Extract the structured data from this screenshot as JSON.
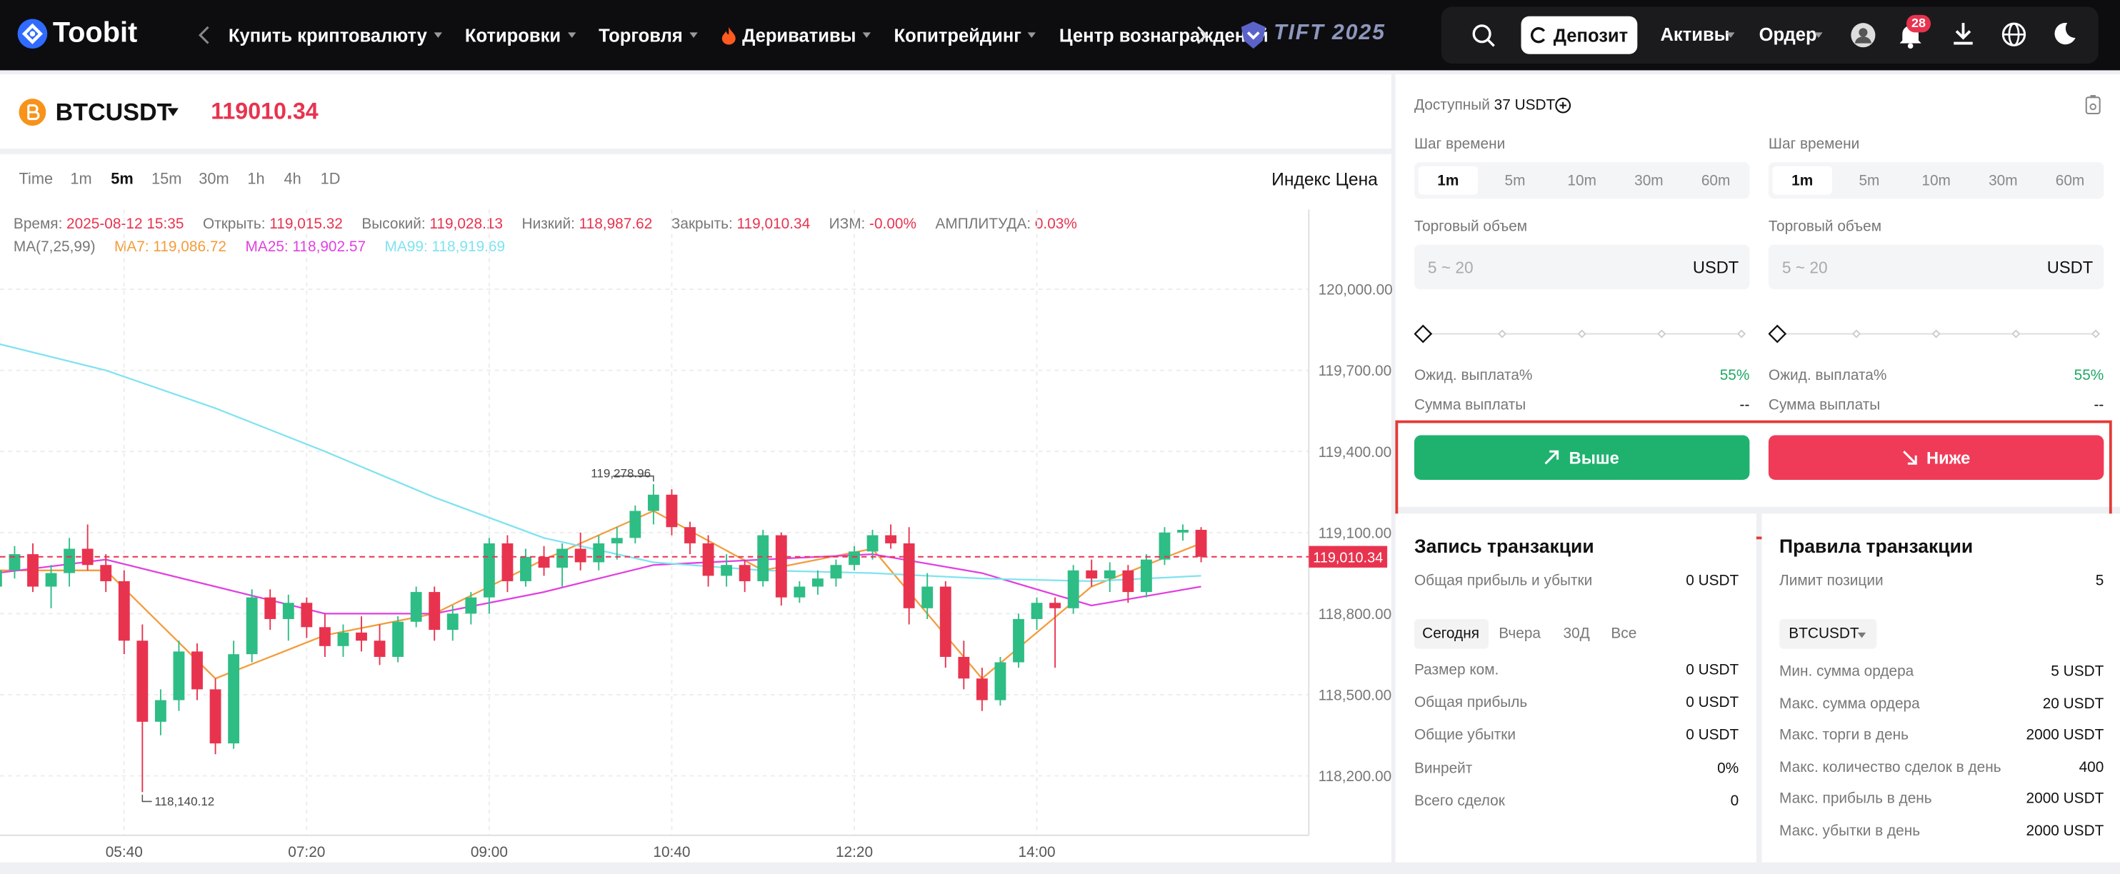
{
  "header": {
    "logo": "Toobit",
    "nav": [
      "Купить криптовалюту",
      "Котировки",
      "Торговля",
      "Деривативы",
      "Копитрейдинг",
      "Центр вознаграждений"
    ],
    "event": "TIFT 2025",
    "deposit": "Депозит",
    "assets": "Активы",
    "order": "Ордер",
    "notifications": "28"
  },
  "ticker": {
    "symbol": "BTCUSDT",
    "price": "119010.34"
  },
  "intervals": {
    "items": [
      "Time",
      "1m",
      "5m",
      "15m",
      "30m",
      "1h",
      "4h",
      "1D"
    ],
    "active": 2,
    "index_price": "Индекс Цена"
  },
  "info": {
    "items": [
      {
        "label": "Время:",
        "value": "2025-08-12 15:35"
      },
      {
        "label": "Открыть:",
        "value": "119,015.32"
      },
      {
        "label": "Высокий:",
        "value": "119,028.13"
      },
      {
        "label": "Низкий:",
        "value": "118,987.62"
      },
      {
        "label": "Закрыть:",
        "value": "119,010.34"
      },
      {
        "label": "ИЗМ:",
        "value": "-0.00%"
      },
      {
        "label": "АМПЛИТУДА:",
        "value": "0.03%"
      }
    ],
    "ma_title": "MA(7,25,99)",
    "ma": [
      {
        "label": "MA7:",
        "value": "119,086.72",
        "color": "#f39c3c"
      },
      {
        "label": "MA25:",
        "value": "118,902.57",
        "color": "#e040e0"
      },
      {
        "label": "MA99:",
        "value": "118,919.69",
        "color": "#7fe3f0"
      }
    ]
  },
  "chart_data": {
    "type": "candlestick",
    "candles": [
      [
        118900,
        118990,
        118850,
        118960
      ],
      [
        118960,
        119050,
        118930,
        119020
      ],
      [
        119020,
        119060,
        118880,
        118900
      ],
      [
        118900,
        118980,
        118820,
        118950
      ],
      [
        118950,
        119080,
        118900,
        119040
      ],
      [
        119040,
        119130,
        118960,
        118980
      ],
      [
        118980,
        119020,
        118880,
        118920
      ],
      [
        118920,
        118960,
        118650,
        118700
      ],
      [
        118700,
        118760,
        118140.12,
        118400
      ],
      [
        118400,
        118520,
        118350,
        118480
      ],
      [
        118480,
        118700,
        118440,
        118660
      ],
      [
        118660,
        118690,
        118480,
        118520
      ],
      [
        118520,
        118560,
        118280,
        118320
      ],
      [
        118320,
        118700,
        118300,
        118650
      ],
      [
        118650,
        118890,
        118620,
        118860
      ],
      [
        118860,
        118890,
        118740,
        118780
      ],
      [
        118780,
        118870,
        118700,
        118840
      ],
      [
        118840,
        118860,
        118710,
        118750
      ],
      [
        118750,
        118800,
        118640,
        118680
      ],
      [
        118680,
        118760,
        118640,
        118730
      ],
      [
        118730,
        118790,
        118660,
        118700
      ],
      [
        118700,
        118760,
        118610,
        118640
      ],
      [
        118640,
        118790,
        118620,
        118770
      ],
      [
        118770,
        118900,
        118750,
        118880
      ],
      [
        118880,
        118900,
        118700,
        118740
      ],
      [
        118740,
        118830,
        118700,
        118800
      ],
      [
        118800,
        118880,
        118760,
        118860
      ],
      [
        118860,
        119080,
        118800,
        119060
      ],
      [
        119060,
        119090,
        118880,
        118920
      ],
      [
        118920,
        119040,
        118900,
        119010
      ],
      [
        119010,
        119050,
        118940,
        118970
      ],
      [
        118970,
        119060,
        118900,
        119040
      ],
      [
        119040,
        119100,
        118960,
        118990
      ],
      [
        118990,
        119090,
        118960,
        119060
      ],
      [
        119060,
        119120,
        119000,
        119080
      ],
      [
        119080,
        119200,
        119060,
        119180
      ],
      [
        119180,
        119278.96,
        119130,
        119240
      ],
      [
        119240,
        119260,
        119090,
        119120
      ],
      [
        119120,
        119140,
        119020,
        119060
      ],
      [
        119060,
        119090,
        118900,
        118940
      ],
      [
        118940,
        119020,
        118900,
        118980
      ],
      [
        118980,
        119000,
        118880,
        118920
      ],
      [
        118920,
        119110,
        118900,
        119090
      ],
      [
        119090,
        119100,
        118830,
        118860
      ],
      [
        118860,
        118920,
        118840,
        118900
      ],
      [
        118900,
        118960,
        118870,
        118930
      ],
      [
        118930,
        119000,
        118900,
        118980
      ],
      [
        118980,
        119050,
        118960,
        119030
      ],
      [
        119030,
        119110,
        119000,
        119090
      ],
      [
        119090,
        119130,
        119040,
        119060
      ],
      [
        119060,
        119120,
        118760,
        118820
      ],
      [
        118820,
        118950,
        118780,
        118900
      ],
      [
        118900,
        118920,
        118600,
        118640
      ],
      [
        118640,
        118700,
        118520,
        118560
      ],
      [
        118560,
        118600,
        118440,
        118480
      ],
      [
        118480,
        118640,
        118460,
        118620
      ],
      [
        118620,
        118800,
        118600,
        118780
      ],
      [
        118780,
        118860,
        118740,
        118840
      ],
      [
        118840,
        118860,
        118600,
        118820
      ],
      [
        118820,
        118980,
        118800,
        118960
      ],
      [
        118960,
        119000,
        118900,
        118930
      ],
      [
        118930,
        118990,
        118880,
        118960
      ],
      [
        118960,
        118980,
        118840,
        118880
      ],
      [
        118880,
        119020,
        118860,
        119000
      ],
      [
        119000,
        119120,
        118980,
        119100
      ],
      [
        119100,
        119130,
        119070,
        119110
      ],
      [
        119110,
        119120,
        118990,
        119010.34
      ]
    ],
    "ma": [
      {
        "color": "#f39c3c",
        "x": [
          0,
          6,
          12,
          18,
          24,
          30,
          36,
          42,
          48,
          54,
          60,
          66
        ],
        "values": [
          118960,
          118960,
          118560,
          118720,
          118800,
          119000,
          119180,
          118960,
          119040,
          118560,
          118900,
          119060
        ]
      },
      {
        "color": "#e040e0",
        "x": [
          0,
          6,
          12,
          18,
          24,
          30,
          36,
          42,
          48,
          54,
          60,
          66
        ],
        "values": [
          118950,
          119000,
          118900,
          118800,
          118800,
          118880,
          118980,
          119000,
          119020,
          118950,
          118830,
          118900
        ]
      },
      {
        "color": "#7fe3f0",
        "x": [
          0,
          6,
          12,
          18,
          24,
          30,
          36,
          42,
          48,
          54,
          60,
          66
        ],
        "values": [
          119800,
          119700,
          119560,
          119400,
          119230,
          119080,
          118990,
          118960,
          118950,
          118930,
          118920,
          118940
        ]
      }
    ],
    "xlim": [
      0.2,
      71.9
    ],
    "xticks": [
      {
        "value": 7,
        "label": "05:40"
      },
      {
        "value": 17,
        "label": "07:20"
      },
      {
        "value": 27,
        "label": "09:00"
      },
      {
        "value": 37,
        "label": "10:40"
      },
      {
        "value": 47,
        "label": "12:20"
      },
      {
        "value": 57,
        "label": "14:00"
      }
    ],
    "ylim": [
      117980,
      120295
    ],
    "yticks": [
      {
        "value": 118200,
        "label": "118,200.00"
      },
      {
        "value": 118500,
        "label": "118,500.00"
      },
      {
        "value": 118800,
        "label": "118,800.00"
      },
      {
        "value": 119100,
        "label": "119,100.00"
      },
      {
        "value": 119400,
        "label": "119,400.00"
      },
      {
        "value": 119700,
        "label": "119,700.00"
      },
      {
        "value": 120000,
        "label": "120,000.00"
      }
    ],
    "last_price": {
      "value": 119010.34,
      "label": "119,010.34"
    },
    "high_label": "119,278.96",
    "low_label": "118,140.12",
    "up_color": "#2ebd85",
    "down_color": "#e8334f",
    "grid": true
  },
  "trade": {
    "available_label": "Доступный",
    "available": "37 USDT",
    "columns": [
      {
        "step_label": "Шаг времени",
        "steps": [
          "1m",
          "5m",
          "10m",
          "30m",
          "60m"
        ],
        "volume_label": "Торговый объем",
        "placeholder": "5 ~ 20",
        "unit": "USDT",
        "payout_label": "Ожид. выплата%",
        "payout": "55%",
        "sum_label": "Сумма выплаты",
        "sum": "--"
      },
      {
        "step_label": "Шаг времени",
        "steps": [
          "1m",
          "5m",
          "10m",
          "30m",
          "60m"
        ],
        "volume_label": "Торговый объем",
        "placeholder": "5 ~ 20",
        "unit": "USDT",
        "payout_label": "Ожид. выплата%",
        "payout": "55%",
        "sum_label": "Сумма выплаты",
        "sum": "--"
      }
    ],
    "buttons": [
      "Выше",
      "Ниже"
    ]
  },
  "records": {
    "title": "Запись транзакции",
    "total_label": "Общая прибыль и убытки",
    "total": "0 USDT",
    "tabs": [
      "Сегодня",
      "Вчера",
      "30Д",
      "Все"
    ],
    "rows": [
      [
        "Размер ком.",
        "0 USDT"
      ],
      [
        "Общая прибыль",
        "0 USDT"
      ],
      [
        "Общие убытки",
        "0 USDT"
      ],
      [
        "Винрейт",
        "0%"
      ],
      [
        "Всего сделок",
        "0"
      ]
    ]
  },
  "rules": {
    "title": "Правила транзакции",
    "limit_label": "Лимит позиции",
    "limit": "5",
    "symbol": "BTCUSDT",
    "rows": [
      [
        "Мин. сумма ордера",
        "5 USDT"
      ],
      [
        "Макс. сумма ордера",
        "20 USDT"
      ],
      [
        "Макс. торги в день",
        "2000 USDT"
      ],
      [
        "Макс. количество сделок в день",
        "400"
      ],
      [
        "Макс. прибыль в день",
        "2000 USDT"
      ],
      [
        "Макс. убытки в день",
        "2000 USDT"
      ]
    ]
  }
}
